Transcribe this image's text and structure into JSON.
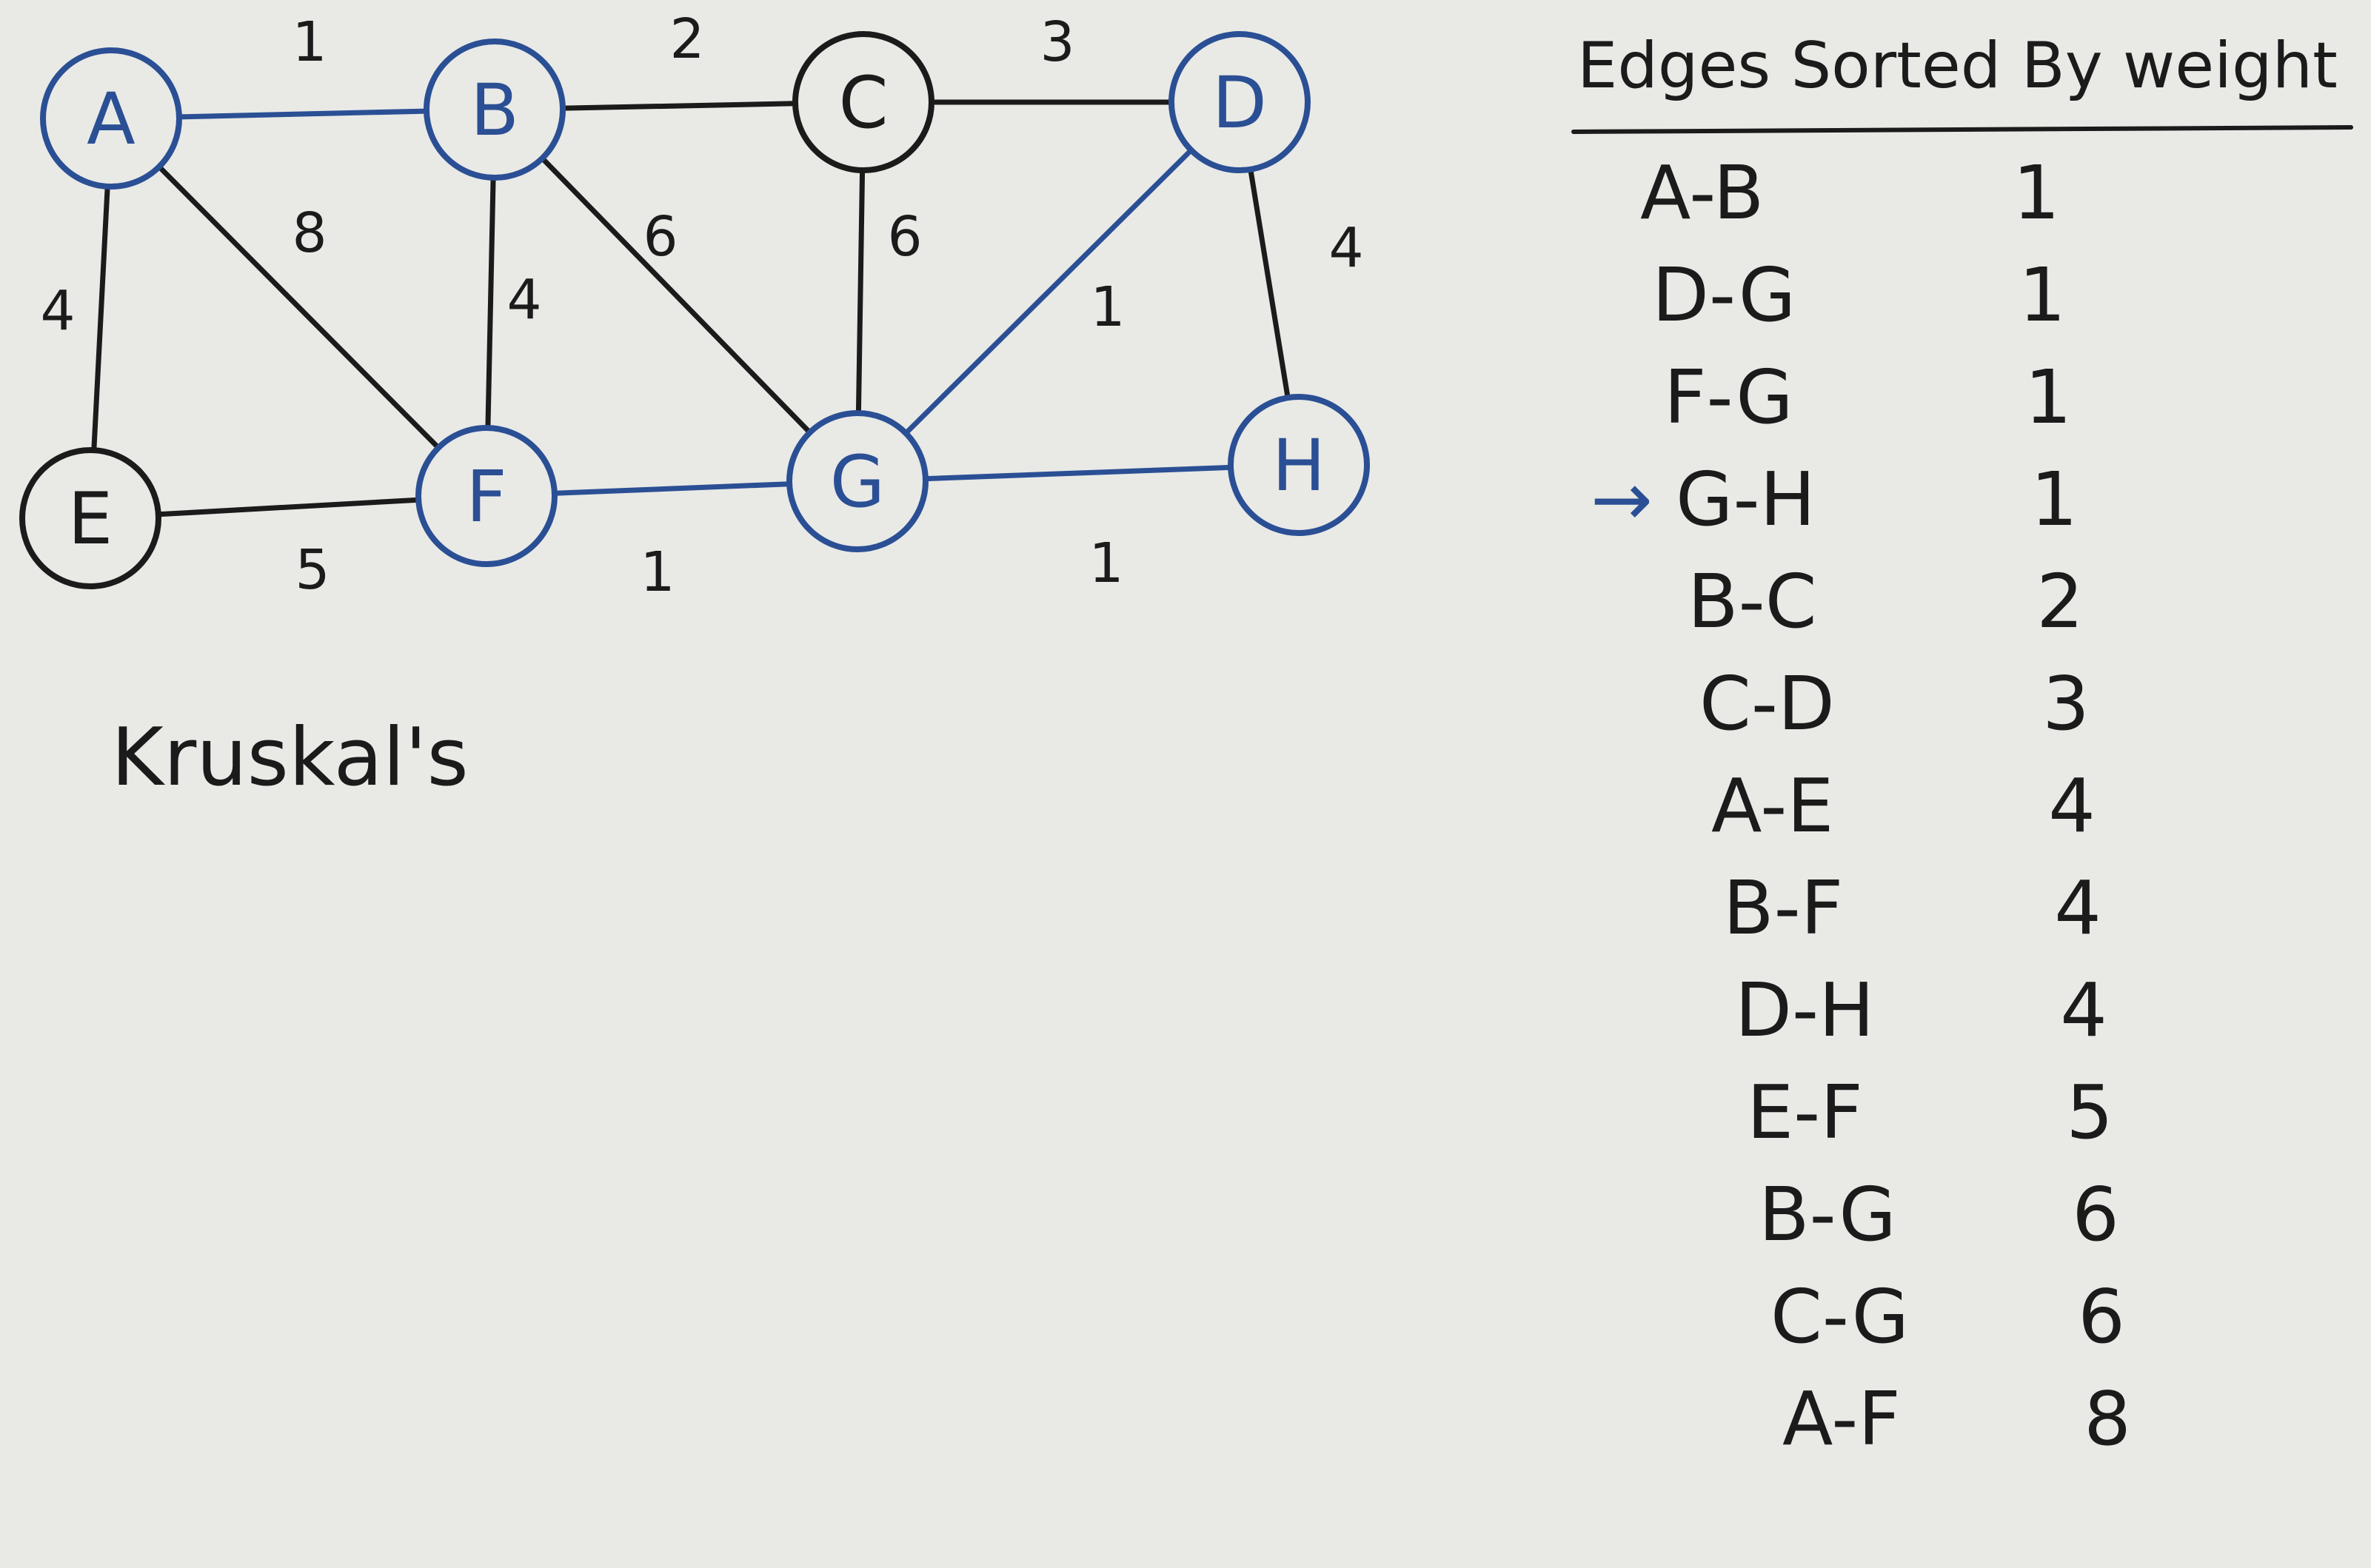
{
  "colors": {
    "board": "#e9e9e6",
    "black_marker": "#1b1b1b",
    "blue_marker": "#2a4f94"
  },
  "graph": {
    "title": "Kruskal's",
    "nodes": [
      {
        "id": "A",
        "label": "A",
        "ink": "blue"
      },
      {
        "id": "B",
        "label": "B",
        "ink": "blue"
      },
      {
        "id": "C",
        "label": "C",
        "ink": "black"
      },
      {
        "id": "D",
        "label": "D",
        "ink": "blue"
      },
      {
        "id": "E",
        "label": "E",
        "ink": "black"
      },
      {
        "id": "F",
        "label": "F",
        "ink": "blue"
      },
      {
        "id": "G",
        "label": "G",
        "ink": "blue"
      },
      {
        "id": "H",
        "label": "H",
        "ink": "blue"
      }
    ],
    "edges": [
      {
        "from": "A",
        "to": "B",
        "weight": "1",
        "ink": "blue"
      },
      {
        "from": "B",
        "to": "C",
        "weight": "2",
        "ink": "black"
      },
      {
        "from": "C",
        "to": "D",
        "weight": "3",
        "ink": "black"
      },
      {
        "from": "A",
        "to": "E",
        "weight": "4",
        "ink": "black"
      },
      {
        "from": "A",
        "to": "F",
        "weight": "8",
        "ink": "black"
      },
      {
        "from": "B",
        "to": "F",
        "weight": "4",
        "ink": "black"
      },
      {
        "from": "B",
        "to": "G",
        "weight": "6",
        "ink": "black"
      },
      {
        "from": "C",
        "to": "G",
        "weight": "6",
        "ink": "black"
      },
      {
        "from": "D",
        "to": "G",
        "weight": "1",
        "ink": "blue"
      },
      {
        "from": "D",
        "to": "H",
        "weight": "4",
        "ink": "black"
      },
      {
        "from": "E",
        "to": "F",
        "weight": "5",
        "ink": "black"
      },
      {
        "from": "F",
        "to": "G",
        "weight": "1",
        "ink": "blue"
      },
      {
        "from": "G",
        "to": "H",
        "weight": "1",
        "ink": "blue"
      }
    ]
  },
  "edge_table": {
    "header": "Edges Sorted By weight",
    "current_marker": "→",
    "rows": [
      {
        "edge": "A-B",
        "weight": "1"
      },
      {
        "edge": "D-G",
        "weight": "1"
      },
      {
        "edge": "F-G",
        "weight": "1"
      },
      {
        "edge": "G-H",
        "weight": "1",
        "current": true
      },
      {
        "edge": "B-C",
        "weight": "2"
      },
      {
        "edge": "C-D",
        "weight": "3"
      },
      {
        "edge": "A-E",
        "weight": "4"
      },
      {
        "edge": "B-F",
        "weight": "4"
      },
      {
        "edge": "D-H",
        "weight": "4"
      },
      {
        "edge": "E-F",
        "weight": "5"
      },
      {
        "edge": "B-G",
        "weight": "6"
      },
      {
        "edge": "C-G",
        "weight": "6"
      },
      {
        "edge": "A-F",
        "weight": "8"
      }
    ]
  }
}
